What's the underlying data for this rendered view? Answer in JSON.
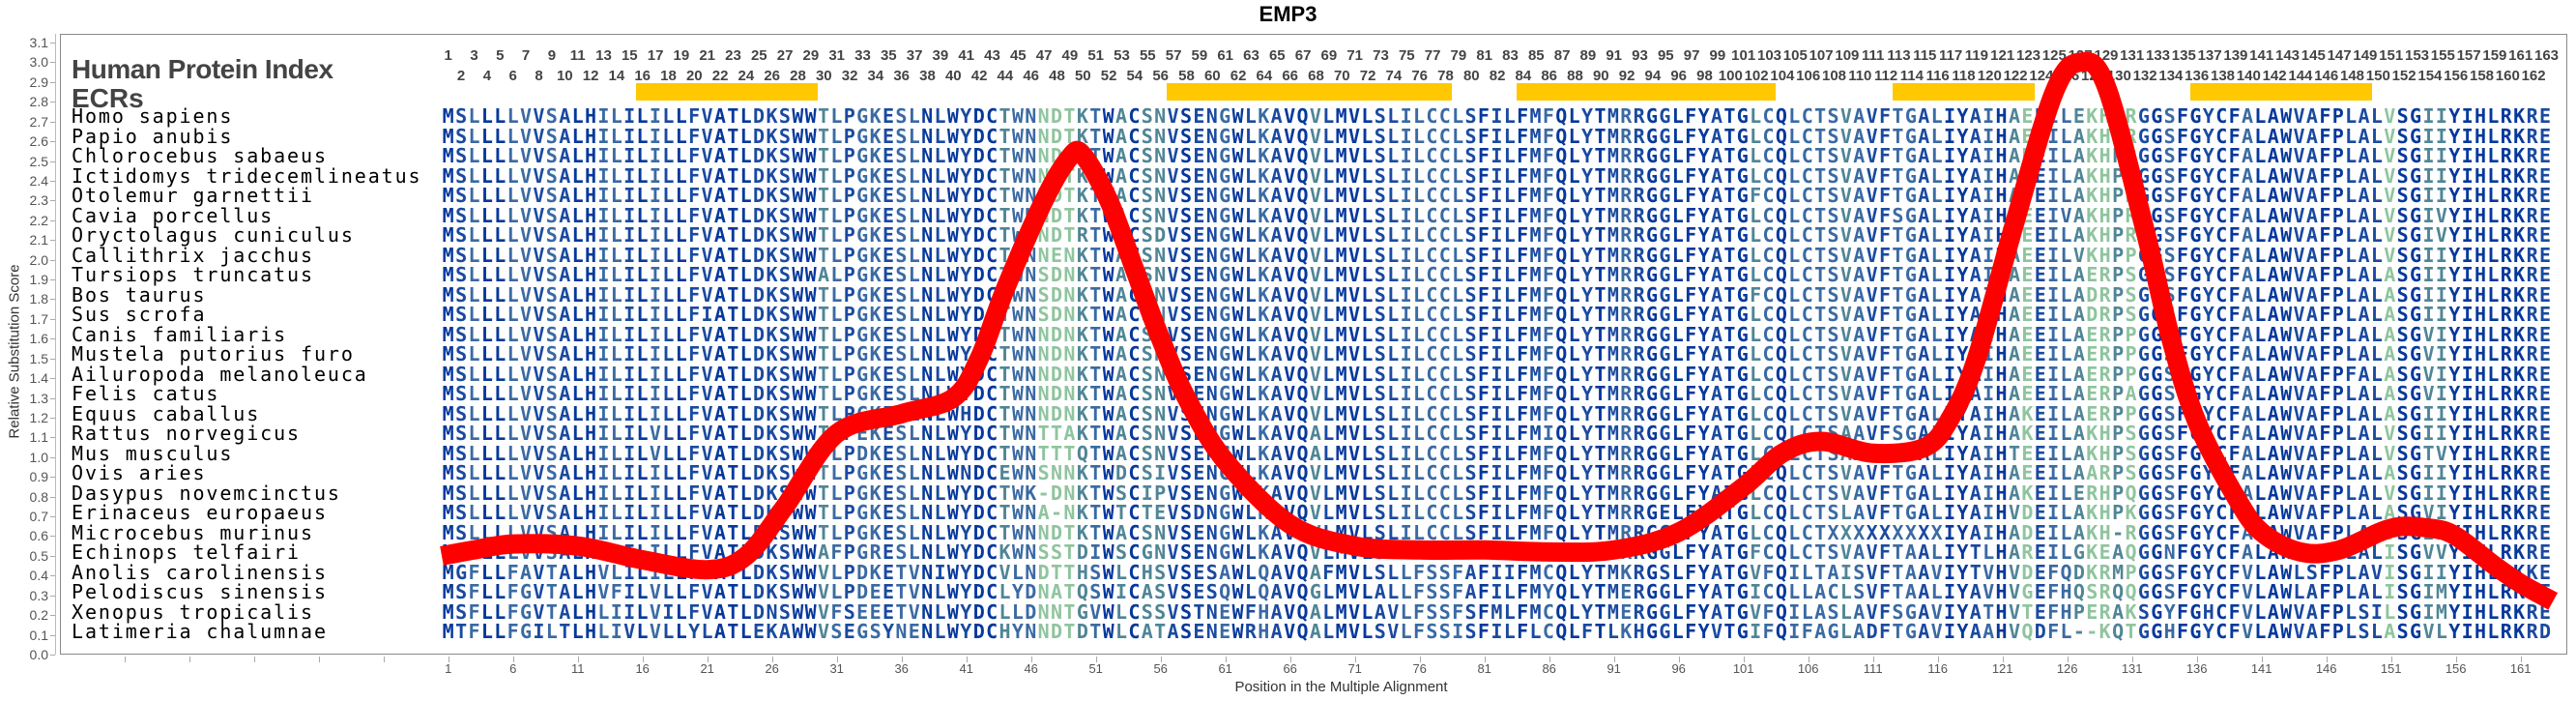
{
  "title": "EMP3",
  "labels": {
    "human_protein_index": "Human Protein Index",
    "ecrs": "ECRs"
  },
  "colors": {
    "curve": "#ff0000",
    "ecr": "#ffc800",
    "conservation_scale": [
      "#06389c",
      "#1a4aa0",
      "#3a6aa3",
      "#4f8596",
      "#8fc49e"
    ]
  },
  "chart_data": {
    "type": "line",
    "title": "EMP3",
    "xlabel": "Position in the Multiple Alignment",
    "ylabel": "Relative Substitution Score",
    "ylim": [
      0,
      3.1
    ],
    "yticks": [
      "0.0",
      "0.1",
      "0.2",
      "0.3",
      "0.4",
      "0.5",
      "0.6",
      "0.7",
      "0.8",
      "0.9",
      "1.0",
      "1.1",
      "1.2",
      "1.3",
      "1.4",
      "1.5",
      "1.6",
      "1.7",
      "1.8",
      "1.9",
      "2.0",
      "2.1",
      "2.2",
      "2.3",
      "2.4",
      "2.5",
      "2.6",
      "2.7",
      "2.8",
      "2.9",
      "3.0",
      "3.1"
    ],
    "xticks": [
      1,
      6,
      11,
      16,
      21,
      26,
      31,
      36,
      41,
      46,
      51,
      56,
      61,
      66,
      71,
      76,
      81,
      86,
      91,
      96,
      101,
      106,
      111,
      116,
      121,
      126,
      131,
      136,
      141,
      146,
      151,
      156,
      161
    ],
    "alignment_length": 163,
    "legend": "none",
    "series": [
      {
        "name": "Relative Substitution Score",
        "x": [
          0.5,
          3,
          6,
          11,
          16,
          21,
          24,
          27,
          31,
          36,
          40,
          42,
          44,
          47,
          49,
          50,
          52,
          54,
          56,
          58,
          61,
          66,
          71,
          76,
          81,
          86,
          91,
          96,
          101,
          104,
          107,
          111,
          115,
          117,
          119,
          122,
          125,
          127,
          129,
          132,
          134,
          136,
          139,
          141,
          144,
          147,
          151,
          154,
          156,
          159,
          161,
          163.5
        ],
        "y": [
          0.5,
          0.53,
          0.56,
          0.55,
          0.48,
          0.43,
          0.5,
          0.75,
          1.12,
          1.22,
          1.3,
          1.5,
          1.85,
          2.3,
          2.52,
          2.53,
          2.3,
          1.95,
          1.6,
          1.3,
          0.98,
          0.66,
          0.55,
          0.53,
          0.53,
          0.52,
          0.53,
          0.62,
          0.85,
          1.02,
          1.08,
          1.02,
          1.05,
          1.2,
          1.5,
          2.2,
          2.85,
          3.0,
          2.88,
          2.15,
          1.6,
          1.18,
          0.8,
          0.62,
          0.52,
          0.53,
          0.64,
          0.64,
          0.6,
          0.45,
          0.36,
          0.27
        ]
      }
    ],
    "ecrs": [
      [
        16,
        29
      ],
      [
        57,
        78
      ],
      [
        84,
        103
      ],
      [
        113,
        123
      ],
      [
        136,
        149
      ]
    ],
    "alignment": [
      {
        "species": "Homo sapiens",
        "sequence": "MSLLLLVVSALHILILILLFVATLDKSWWTLPGKESLNLWYDCTWNNDTKTWACSNVSENGWLKAVQVLMVLSLILCCLSFILFMFQLYTMRRGGLFYATGLCQLCTSVAVFTGALIYAIHAEEILEKHPRGGSFGYCFALAWVAFPLALVSGIIYIHLRKRE"
      },
      {
        "species": "Papio anubis",
        "sequence": "MSLLLLVVSALHILILILLFVATLDKSWWTLPGKESLNLWYDCTWNNDTKTWACSNVSENGWLKAVQVLMVLSLILCCLSFILFMFQLYTMRRGGLFYATGLCQLCTSVAVFTGALIYAIHAEEILAKHPRGGSFGYCFALAWVAFPLALVSGIIYIHLRKRE"
      },
      {
        "species": "Chlorocebus sabaeus",
        "sequence": "MSLLLLVVSALHILILILLFVATLDKSWWTLPGKESLNLWYDCTWNNDTKTWACSNVSENGWLKAVQVLMVLSLILCCLSFILFMFQLYTMRRGGLFYATGLCQLCTSVAVFTGALIYAIHAEEILAKHPRGGSFGYCFALAWVAFPLALVSGIIYIHLRKRE"
      },
      {
        "species": "Ictidomys tridecemlineatus",
        "sequence": "MSLLLLVVSALHILILILLFVATLDKSWWTLPGKESLNLWYDCTWNNGTKTWACSNVSENGWLKAVQVLMVLSLILCCLSFILFMFQLYTMRRGGLFYATGLCQLCTSVAVFTGALIYAIHAEEILAKHPRGGSFGYCFALAWVAFPLALVSGIIYIHLRKRE"
      },
      {
        "species": "Otolemur garnettii",
        "sequence": "MSLLLLVVSALHILILILLFVATLDKSWWTLPGKESLNLWYDCTWNNDTKTWACSNVSENGWLKAVQVLMVLSLILCCLSFILFMFQLYTMRRGGLFYATGFCQLCTSVAVFTGALIYAIHADEILAKHPRGGSFGYCFALAWVAFPLALVSGIIYIHLRKRE"
      },
      {
        "species": "Cavia porcellus",
        "sequence": "MSLLLLVVSALHILILILLFVATLDKSWWTLPGKESLNLWYDCTWNNDTKTWACSNVSENGWLKAVQVLMVLSLILCCLSFILFMFQLYTMRRGGLFYATGLCQLCTSVAVFSGALIYAIHAEEIVAKHPRGGSFGYCFALAWVAFPLALVSGIVYIHLRKRE"
      },
      {
        "species": "Oryctolagus cuniculus",
        "sequence": "MSLLLLVVSALHILILILLFVATLDKSWWTLPGKESLNLWYDCTWKNDTRTWACSDVSENGWLKAVQVLMVLSLILCCLSFILFMFQLYTMRRGGLFYATGLCQLCTSVAVFTGALIYAIHAEEILAKHPRGGSFGYCFALAWVAFPLALVSGIVYIHLRKRE"
      },
      {
        "species": "Callithrix jacchus",
        "sequence": "MSLLLLVVSALHILILILLFVATLDKSWWTLPGKESLNLWYDCTWNNENKTWACSNVSENGWLKAVQVLMVLSLILCCLSFILFMFQLYTMRRGGLFYATGLCQLCTSVAVFTGALIYAIHAEEILVKHPPGGSFGYCFALAWVAFPLALVSGIIYIHLRKRE"
      },
      {
        "species": "Tursiops truncatus",
        "sequence": "MSLLLLVVSALHILILILLFVATLDKSWWALPGKESLNLWYDCTWNSDNKTWACSNVSENGWLKAVQVLMVLSLILCCLSFILFMFQLYTMRRGGLFYATGLCQLCTSVAVFTGALIYAIHAEEILAERPSGGSFGYCFALAWVAFPLALASGIIYIHLRKRE"
      },
      {
        "species": "Bos taurus",
        "sequence": "MSLLLLVVSALHILILILLFVATLDKSWWTLPGKESLNLWYDCTWNSDNKTWACSNVSENGWLKAVQVLMVLSLILCCLSFILFMFQLYTMRRGGLFYATGFCQLCTSVAVFTGALIYAIHAEEILADRPSGGSFGYCFALAWVAFPLALASGIIYIHLRKRE"
      },
      {
        "species": "Sus scrofa",
        "sequence": "MSLLLLVVSALHILILILLFIATLDKSWWTLPGKESLNLWYDCTWNSDNKTWACSNVSENGWLKAVQVLMVLSLILCCLSFILFMFQLYTMRRGGLFYATGLCQLCTSVAVFTGALIYAIHAEEILADRPSGGSFGYCFALAWVAFPLALASGIIYIHLRKRE"
      },
      {
        "species": "Canis familiaris",
        "sequence": "MSLLLLVVSALHILILILLFVATLDKSWWTLPGKESLNLWYDCTWNNDNKTWACSNVSENGWLKAVQVLMVLSLILCCLSFILFMFQLYTMRRGGLFYATGLCQLCTSVAVFTGALIYAIHAEEILAERPPGGSFGYCFALAWVAFPLALASGVIYIHLRKRE"
      },
      {
        "species": "Mustela putorius furo",
        "sequence": "MSLLLLVVSALHILILILLFVATLDKSWWTLPGKESLNLWYDCTWNNDNKTWACSNVSENGWLKAVQVLMVLSLILCCLSFILFMFQLYTMRRGGLFYATGLCQLCTSVAVFTGALIYAIHAEEILAERPPGGSFGYCFALAWVAFPLALASGVIYIHLRKRE"
      },
      {
        "species": "Ailuropoda melanoleuca",
        "sequence": "MSLLLLVVSALHILILILLFVATLDKSWWTLPGKESLNLWYDCTWNNDNKTWACSNVSENGWLKAVQVLMVLSLILCCLSFILFMFQLYTMRRGGLFYATGLCQLCTSVAVFTGALIYAIHAEEILAERPPGGSFGYCFALAWVAFPFALASGVIYIHLRKRE"
      },
      {
        "species": "Felis catus",
        "sequence": "MSLLLLVVSALHILILILLFVATLDKSWWTLPGKESLNLWYDCTWNNDNKTWACSNVSENGWLKAVQVLMVLSLILCCLSFILFMFQLYTMRRGGLFYATGLCQLCTSVAVFTGALIYAIHAEEILAERPAGGSFGYCFALAWVAFPLALASGVIYIHLRKRE"
      },
      {
        "species": "Equus caballus",
        "sequence": "MSLLLLVVSALHILILILLFVATLDKSWWTLPGKESLNLWHDCTWNNDNKTWACSNVSENGWLKAVQVLMVLSLILCCLSFILFMFQLYTMRRGGLFYATGLCQLCTSVAVFTGALIYAIHAKEILAERPPGGSFGYCFALAWVAFPLALASGIIYIHLRKRE"
      },
      {
        "species": "Rattus norvegicus",
        "sequence": "MSLLLLVVSALHILILVLLFVATLDKSWWTLPEKESLNLWYDCTWNTTAKTWACSNVSENGWLKAVQALMVLSLILCCLSFILFMIQLYTMRRGGLFYATGLCQLCTSAAVFSGALIYAIHAKEILAKHPSGGSFGYCFALAWVAFPLALVSGIIYIHLRKRE"
      },
      {
        "species": "Mus musculus",
        "sequence": "MSLLLLVVSALHILILVLLFVATLDKSWWTLPDKESLNLWYDCTWNTTTQTWACSNVSENGWLKAVQALMVLSLILCCLSFILFMFQLYTMRRGGLFYATGLCQLCTSAAVFSGALIYAIHTEEILAKHPSGGSFGYCFALAWVAFPLALVSGTVYIHLRKRE"
      },
      {
        "species": "Ovis aries",
        "sequence": "MSLLLLVVSALHILILILLFVATLDKSWWTLPGKESLNLWNDCEWNSNNKTWDCSIVSENGWLKAVQVLMVLSLILCCLSFILFMFQLYTMRRGGLFYATGFCQLCTSVAVFTGALIYAIHAEEILAARPSGGSFGYCFALAWVAFPLALASGIIYIHLRKRE"
      },
      {
        "species": "Dasypus novemcinctus",
        "sequence": "MSLLLLVVSALHILILILLFVATLDKSWWTLPGKESLNLWYDCTWK-DNKTWSCIPVSENGWLKAVQVLMVLSLILCCLSFILFMFQLYTMRRGGLFYATGLCQLCTSVAVFTGALIYAIHAKEILERHPQGGSFGYCFALAWVAFPLALVSGIIYIHLRKRE"
      },
      {
        "species": "Erinaceus europaeus",
        "sequence": "MSLLLLVVSALHILILILLFVATLDKSWWTLPGKESLNLWYDCTWNA-NKTWTCTEVSDNGWLKSVQVLMVLSLILCCLSFILFMFQLYTMRRGELFYATGLCQLCTSLAVFTGALIYAIHVDEILAKHPKGGSFGYCFILAWVAFPLALASGVIYIHLRKRE"
      },
      {
        "species": "Microcebus murinus",
        "sequence": "MSLLLLVVSALHILILILLFVATLDKSWWTLPGKESLNLWYDCTWNNDTKTWACSNVSENGWLKAVQVLMVLSLILCCLSFILFMFQLYTMRRGGLFYATGLCQLCTXXXXXXXXXIYAIHADEILAKH-RGGSFGYCFALAWVAFPLALVSGIIYIHLRKRE"
      },
      {
        "species": "Echinops telfairi",
        "sequence": "MSLLLLVVSALHVLILILLFVATLDKSWWAFPGRESLNLWYDCKWNSSTDIWSCGNVSENGWLKAVQVLMVLSLILCCLSFILFMFQLYTMRRGGLFYATGFCQLCTSVAVFTAALIYTLHAREILGKEAQGGNFGYCFALAWVAFPLALISGVVYIHLRKRE"
      },
      {
        "species": "Anolis carolinensis",
        "sequence": "MGFLLFAVTALHVLILILLFVATLDKSWWVLPDKETVNIWYDCVLNDTTHSWLCHSVSESAWLQAVQAFMVLSLLFSSFAFIIFMCQLYTMKRGSLFYATGVFQILTAISVFTAAVIYTVHVDEFQDKRMPGGSFGYCFVLAWLSFPLAVISGIIYIHLRKKE"
      },
      {
        "species": "Pelodiscus sinensis",
        "sequence": "MSFLLFGVTALHVFILVLLFVATLDKSWWVLPDEETVNLWYDCLYDNATQSWICASVSESQWLQAVQGLMVLALLFSSFAFILFMYQLYTMERGGLFYATGICQLLACLSVFTAALIYAVHVGEFHQSRQQGGSFGYCFVLAWLAFPLALISGIMYIHLRKRE"
      },
      {
        "species": "Xenopus tropicalis",
        "sequence": "MSFLLFGVTALHLIILVILFVATLDNSWWVFSEEETVNLWYDCLLDNNTGVWLCSSVSTNEWFHAVQALMVLAVLFSSFSFMLFMCQLYTMERGGLFYATGVFQILASLAVFSGAVIYATHVTEFHPERAKSGYFGHCFVLAWVAFPLSILSGIMYIHLRKRE"
      },
      {
        "species": "Latimeria chalumnae",
        "sequence": "MTFLLFGILTLHLIVLVLLYLATLEKAWWVSEGSYNENLWYDCHYNNDTDTWLCATASENEWRHAVQALMVLSVLFSSISFILFLCQLFTLKHGGLFYVTGIFQIFAGLADFTGAVIYAAHVQDFL--KQTGGHFGYCFVLAWVAFPLSLASGVLYIHLRKRD"
      }
    ]
  }
}
